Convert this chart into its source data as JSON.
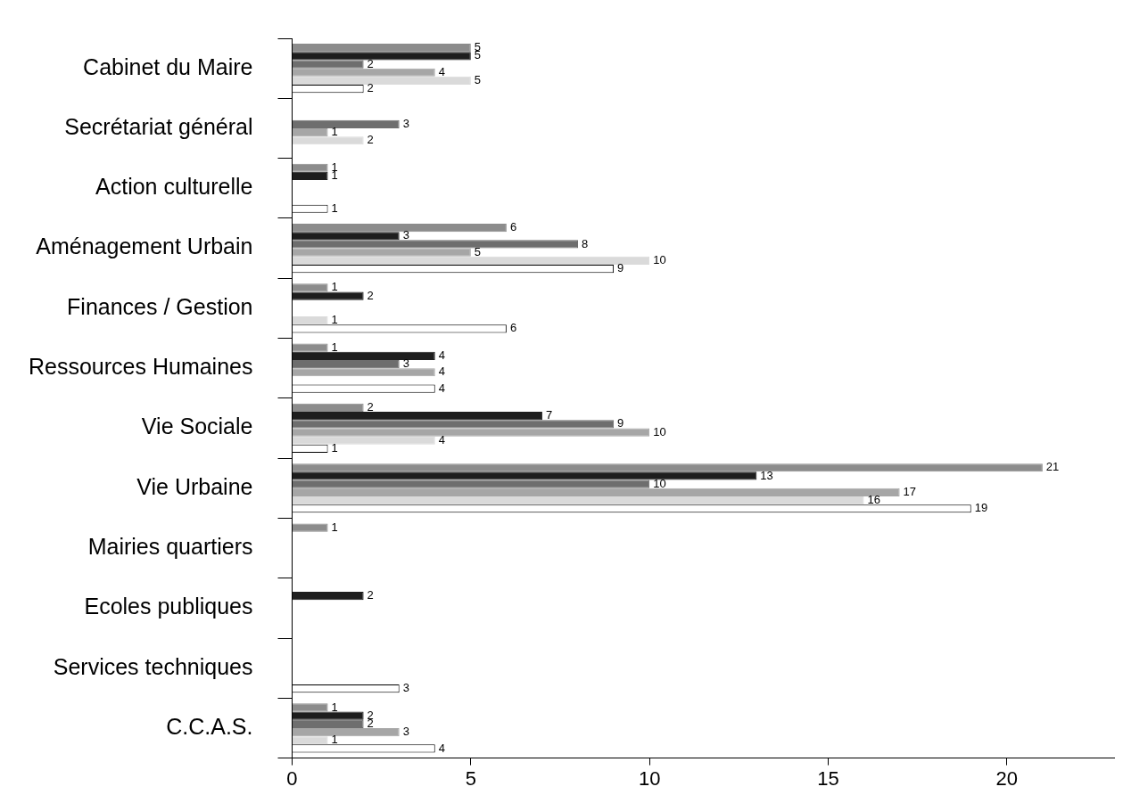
{
  "chart_data": {
    "type": "bar",
    "orientation": "horizontal",
    "categories": [
      "Cabinet du Maire",
      "Secrétariat général",
      "Action culturelle",
      "Aménagement Urbain",
      "Finances / Gestion",
      "Ressources Humaines",
      "Vie Sociale",
      "Vie Urbaine",
      "Mairies quartiers",
      "Ecoles publiques",
      "Services techniques",
      "C.C.A.S."
    ],
    "series": [
      {
        "color": "#8c8c8c",
        "values": [
          5,
          null,
          1,
          6,
          1,
          1,
          2,
          21,
          1,
          null,
          null,
          1
        ]
      },
      {
        "color": "#1e1e1e",
        "values": [
          5,
          null,
          1,
          3,
          2,
          4,
          7,
          13,
          null,
          2,
          null,
          2
        ]
      },
      {
        "color": "#6e6e6e",
        "values": [
          2,
          3,
          null,
          8,
          null,
          3,
          9,
          10,
          null,
          null,
          null,
          2
        ]
      },
      {
        "color": "#a6a6a6",
        "values": [
          4,
          1,
          null,
          5,
          null,
          4,
          10,
          17,
          null,
          null,
          null,
          3
        ]
      },
      {
        "color": "#dadada",
        "values": [
          5,
          2,
          null,
          10,
          1,
          null,
          4,
          16,
          null,
          null,
          null,
          1
        ]
      },
      {
        "color": "#ffffff",
        "values": [
          2,
          null,
          1,
          9,
          6,
          4,
          1,
          19,
          null,
          null,
          3,
          4
        ]
      }
    ],
    "xlim": [
      0,
      23
    ],
    "xticks": [
      0,
      5,
      10,
      15,
      20
    ],
    "data_labels": true,
    "grid": false,
    "legend": false
  }
}
